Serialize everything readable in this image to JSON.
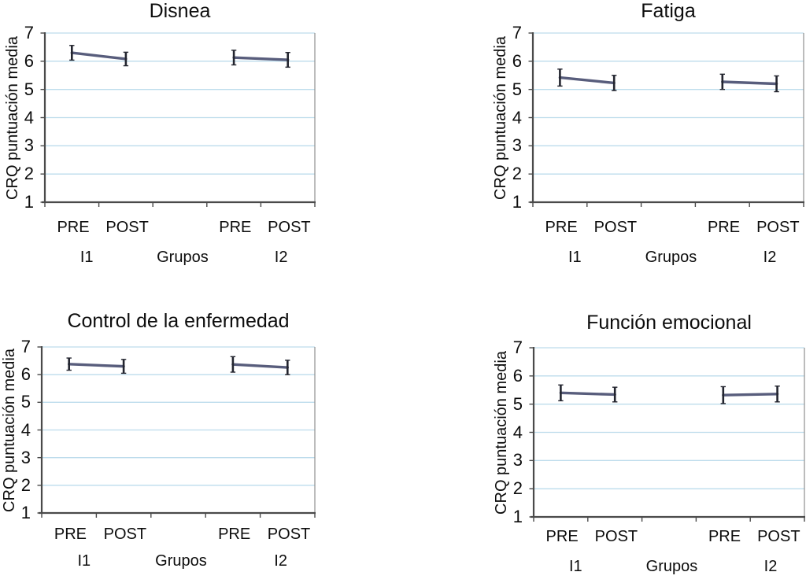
{
  "styles": {
    "line_color": "#585d7c",
    "error_bar_color": "#23252f",
    "grid_color": "#bddcec",
    "axis_color": "#4a4a4a",
    "right_border_color": "#8f8f8f",
    "text_color": "#0d0d0d",
    "background": "#ffffff"
  },
  "chart_data": [
    {
      "type": "line",
      "title": "Disnea",
      "y_label": "CRQ puntuación media",
      "y_min": 1,
      "y_max": 7,
      "y_ticks": [
        7,
        6,
        5,
        4,
        3,
        2,
        1
      ],
      "grid": true,
      "legend": "none",
      "x_labels": [
        "PRE",
        "POST",
        "PRE",
        "POST"
      ],
      "group_row": [
        "I1",
        "Grupos",
        "I2"
      ],
      "series": [
        {
          "name": "I1",
          "points": [
            {
              "x": "PRE",
              "slot": 0,
              "value": 6.3,
              "err": 0.26
            },
            {
              "x": "POST",
              "slot": 1,
              "value": 6.08,
              "err": 0.24
            }
          ]
        },
        {
          "name": "I2",
          "points": [
            {
              "x": "PRE",
              "slot": 2,
              "value": 6.13,
              "err": 0.26
            },
            {
              "x": "POST",
              "slot": 3,
              "value": 6.05,
              "err": 0.26
            }
          ]
        }
      ]
    },
    {
      "type": "line",
      "title": "Fatiga",
      "y_label": "CRQ puntuación media",
      "y_min": 1,
      "y_max": 7,
      "y_ticks": [
        7,
        6,
        5,
        4,
        3,
        2,
        1
      ],
      "grid": true,
      "legend": "none",
      "x_labels": [
        "PRE",
        "POST",
        "PRE",
        "POST"
      ],
      "group_row": [
        "I1",
        "Grupos",
        "I2"
      ],
      "series": [
        {
          "name": "I1",
          "points": [
            {
              "x": "PRE",
              "slot": 0,
              "value": 5.42,
              "err": 0.3
            },
            {
              "x": "POST",
              "slot": 1,
              "value": 5.23,
              "err": 0.27
            }
          ]
        },
        {
          "name": "I2",
          "points": [
            {
              "x": "PRE",
              "slot": 2,
              "value": 5.27,
              "err": 0.27
            },
            {
              "x": "POST",
              "slot": 3,
              "value": 5.2,
              "err": 0.28
            }
          ]
        }
      ]
    },
    {
      "type": "line",
      "title": "Control de la enfermedad",
      "y_label": "CRQ puntuación media",
      "y_min": 1,
      "y_max": 7,
      "y_ticks": [
        7,
        6,
        5,
        4,
        3,
        2,
        1
      ],
      "grid": true,
      "legend": "none",
      "x_labels": [
        "PRE",
        "POST",
        "PRE",
        "POST"
      ],
      "group_row": [
        "I1",
        "Grupos",
        "I2"
      ],
      "series": [
        {
          "name": "I1",
          "points": [
            {
              "x": "PRE",
              "slot": 0,
              "value": 6.38,
              "err": 0.22
            },
            {
              "x": "POST",
              "slot": 1,
              "value": 6.3,
              "err": 0.25
            }
          ]
        },
        {
          "name": "I2",
          "points": [
            {
              "x": "PRE",
              "slot": 2,
              "value": 6.37,
              "err": 0.28
            },
            {
              "x": "POST",
              "slot": 3,
              "value": 6.26,
              "err": 0.26
            }
          ]
        }
      ]
    },
    {
      "type": "line",
      "title": "Función emocional",
      "y_label": "CRQ puntuación media",
      "y_min": 1,
      "y_max": 7,
      "y_ticks": [
        7,
        6,
        5,
        4,
        3,
        2,
        1
      ],
      "grid": true,
      "legend": "none",
      "x_labels": [
        "PRE",
        "POST",
        "PRE",
        "POST"
      ],
      "group_row": [
        "I1",
        "Grupos",
        "I2"
      ],
      "series": [
        {
          "name": "I1",
          "points": [
            {
              "x": "PRE",
              "slot": 0,
              "value": 5.4,
              "err": 0.28
            },
            {
              "x": "POST",
              "slot": 1,
              "value": 5.34,
              "err": 0.26
            }
          ]
        },
        {
          "name": "I2",
          "points": [
            {
              "x": "PRE",
              "slot": 2,
              "value": 5.32,
              "err": 0.3
            },
            {
              "x": "POST",
              "slot": 3,
              "value": 5.36,
              "err": 0.28
            }
          ]
        }
      ]
    }
  ]
}
